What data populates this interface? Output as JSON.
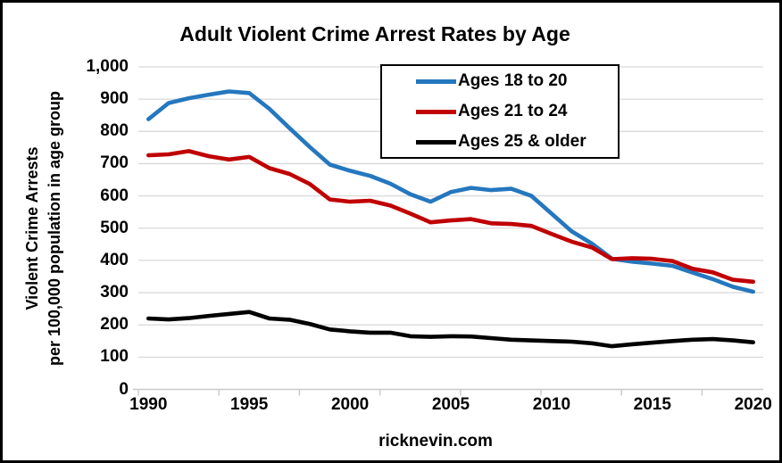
{
  "title": "Adult Violent Crime Arrest Rates by Age",
  "footer": "ricknevin.com",
  "y_axis_title": {
    "line1": "Violent Crime Arrests",
    "line2": "per 100,000 population in age group"
  },
  "colors": {
    "gridline": "#D9D9D9",
    "axis": "#C9C9C9",
    "text": "#000000",
    "background": "#FFFFFF"
  },
  "chart_data": {
    "type": "line",
    "x": [
      1990,
      1991,
      1992,
      1993,
      1994,
      1995,
      1996,
      1997,
      1998,
      1999,
      2000,
      2001,
      2002,
      2003,
      2004,
      2005,
      2006,
      2007,
      2008,
      2009,
      2010,
      2011,
      2012,
      2013,
      2014,
      2015,
      2016,
      2017,
      2018,
      2019,
      2020
    ],
    "series": [
      {
        "name": "Ages 18 to 20",
        "color": "#2577BE",
        "values": [
          838,
          888,
          903,
          914,
          924,
          919,
          870,
          810,
          752,
          697,
          678,
          662,
          638,
          605,
          582,
          612,
          625,
          618,
          622,
          600,
          545,
          490,
          452,
          405,
          396,
          390,
          383,
          362,
          342,
          318,
          303
        ]
      },
      {
        "name": "Ages 21 to 24",
        "color": "#C00000",
        "values": [
          726,
          729,
          739,
          723,
          713,
          721,
          686,
          668,
          637,
          589,
          582,
          585,
          570,
          545,
          518,
          524,
          528,
          515,
          513,
          507,
          482,
          458,
          440,
          404,
          407,
          405,
          398,
          374,
          363,
          340,
          334
        ]
      },
      {
        "name": "Ages 25 & older",
        "color": "#000000",
        "values": [
          220,
          217,
          221,
          228,
          234,
          240,
          220,
          216,
          203,
          186,
          180,
          176,
          176,
          165,
          163,
          165,
          164,
          159,
          154,
          152,
          150,
          148,
          143,
          134,
          140,
          145,
          150,
          154,
          156,
          152,
          146
        ]
      }
    ],
    "ylim": [
      0,
      1000
    ],
    "y_tick_labels": [
      "0",
      "100",
      "200",
      "300",
      "400",
      "500",
      "600",
      "700",
      "800",
      "900",
      "1,000"
    ],
    "x_tick_labels": [
      "1990",
      "1995",
      "2000",
      "2005",
      "2010",
      "2015",
      "2020"
    ],
    "grid": true,
    "legend_position": "inside-top-center",
    "xlabel": "",
    "ylabel": "Violent Crime Arrests per 100,000 population in age group"
  }
}
